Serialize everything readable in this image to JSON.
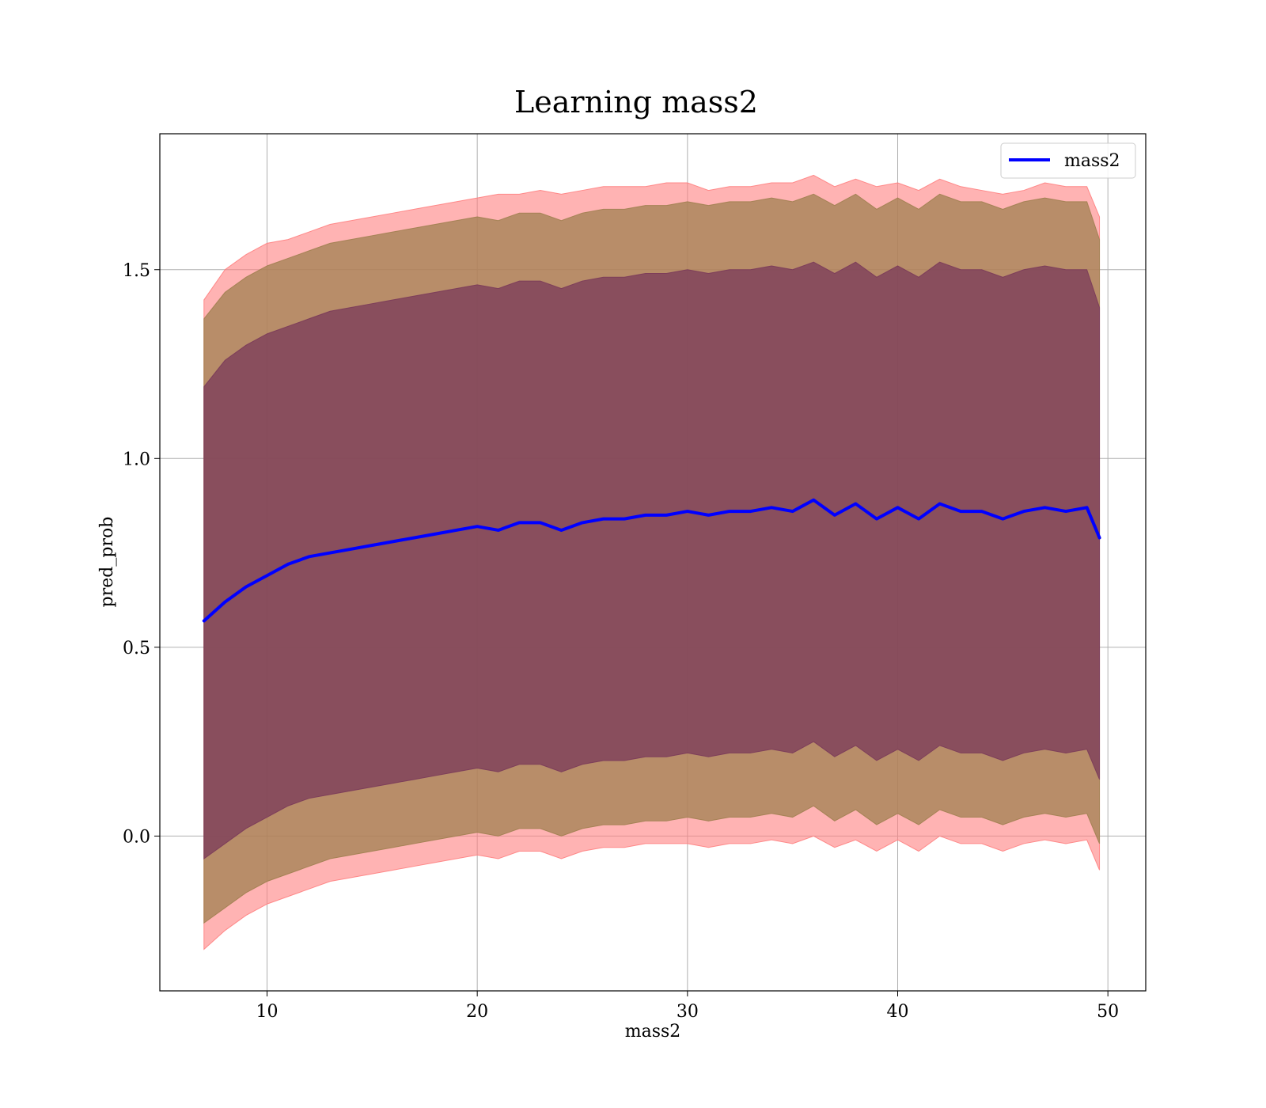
{
  "chart_data": {
    "type": "area",
    "title": "Learning mass2",
    "xlabel": "mass2",
    "ylabel": "pred_prob",
    "xlim": [
      4.9,
      51.8
    ],
    "ylim": [
      -0.41,
      1.86
    ],
    "xticks": [
      10,
      20,
      30,
      40,
      50
    ],
    "yticks": [
      0.0,
      0.5,
      1.0,
      1.5
    ],
    "xtick_labels": [
      "10",
      "20",
      "30",
      "40",
      "50"
    ],
    "ytick_labels": [
      "0.0",
      "0.5",
      "1.0",
      "1.5"
    ],
    "grid": true,
    "legend": {
      "position": "upper-right",
      "entries": [
        "mass2"
      ]
    },
    "colors": {
      "line": "#0000ff",
      "band_outer": "#ff8080",
      "band_middle": "#a08050",
      "band_inner": "#7a3a5a"
    },
    "x": [
      7.0,
      8.0,
      9.0,
      10.0,
      11.0,
      12.0,
      13.0,
      14.0,
      15.0,
      16.0,
      17.0,
      18.0,
      19.0,
      20.0,
      21.0,
      22.0,
      23.0,
      24.0,
      25.0,
      26.0,
      27.0,
      28.0,
      29.0,
      30.0,
      31.0,
      32.0,
      33.0,
      34.0,
      35.0,
      36.0,
      37.0,
      38.0,
      39.0,
      40.0,
      41.0,
      42.0,
      43.0,
      44.0,
      45.0,
      46.0,
      47.0,
      48.0,
      49.0,
      49.6
    ],
    "series": [
      {
        "name": "mass2",
        "values": [
          0.57,
          0.62,
          0.66,
          0.69,
          0.72,
          0.74,
          0.75,
          0.76,
          0.77,
          0.78,
          0.79,
          0.8,
          0.81,
          0.82,
          0.81,
          0.83,
          0.83,
          0.81,
          0.83,
          0.84,
          0.84,
          0.85,
          0.85,
          0.86,
          0.85,
          0.86,
          0.86,
          0.87,
          0.86,
          0.89,
          0.85,
          0.88,
          0.84,
          0.87,
          0.84,
          0.88,
          0.86,
          0.86,
          0.84,
          0.86,
          0.87,
          0.86,
          0.87,
          0.79
        ]
      }
    ],
    "bands": [
      {
        "level": "outer",
        "upper": [
          1.42,
          1.5,
          1.54,
          1.57,
          1.58,
          1.6,
          1.62,
          1.63,
          1.64,
          1.65,
          1.66,
          1.67,
          1.68,
          1.69,
          1.7,
          1.7,
          1.71,
          1.7,
          1.71,
          1.72,
          1.72,
          1.72,
          1.73,
          1.73,
          1.71,
          1.72,
          1.72,
          1.73,
          1.73,
          1.75,
          1.72,
          1.74,
          1.72,
          1.73,
          1.71,
          1.74,
          1.72,
          1.71,
          1.7,
          1.71,
          1.73,
          1.72,
          1.72,
          1.64
        ],
        "lower": [
          -0.3,
          -0.25,
          -0.21,
          -0.18,
          -0.16,
          -0.14,
          -0.12,
          -0.11,
          -0.1,
          -0.09,
          -0.08,
          -0.07,
          -0.06,
          -0.05,
          -0.06,
          -0.04,
          -0.04,
          -0.06,
          -0.04,
          -0.03,
          -0.03,
          -0.02,
          -0.02,
          -0.02,
          -0.03,
          -0.02,
          -0.02,
          -0.01,
          -0.02,
          0.0,
          -0.03,
          -0.01,
          -0.04,
          -0.01,
          -0.04,
          0.0,
          -0.02,
          -0.02,
          -0.04,
          -0.02,
          -0.01,
          -0.02,
          -0.01,
          -0.09
        ]
      },
      {
        "level": "middle",
        "upper": [
          1.37,
          1.44,
          1.48,
          1.51,
          1.53,
          1.55,
          1.57,
          1.58,
          1.59,
          1.6,
          1.61,
          1.62,
          1.63,
          1.64,
          1.63,
          1.65,
          1.65,
          1.63,
          1.65,
          1.66,
          1.66,
          1.67,
          1.67,
          1.68,
          1.67,
          1.68,
          1.68,
          1.69,
          1.68,
          1.7,
          1.67,
          1.7,
          1.66,
          1.69,
          1.66,
          1.7,
          1.68,
          1.68,
          1.66,
          1.68,
          1.69,
          1.68,
          1.68,
          1.58
        ],
        "lower": [
          -0.23,
          -0.19,
          -0.15,
          -0.12,
          -0.1,
          -0.08,
          -0.06,
          -0.05,
          -0.04,
          -0.03,
          -0.02,
          -0.01,
          0.0,
          0.01,
          0.0,
          0.02,
          0.02,
          0.0,
          0.02,
          0.03,
          0.03,
          0.04,
          0.04,
          0.05,
          0.04,
          0.05,
          0.05,
          0.06,
          0.05,
          0.08,
          0.04,
          0.07,
          0.03,
          0.06,
          0.03,
          0.07,
          0.05,
          0.05,
          0.03,
          0.05,
          0.06,
          0.05,
          0.06,
          -0.02
        ]
      },
      {
        "level": "inner",
        "upper": [
          1.19,
          1.26,
          1.3,
          1.33,
          1.35,
          1.37,
          1.39,
          1.4,
          1.41,
          1.42,
          1.43,
          1.44,
          1.45,
          1.46,
          1.45,
          1.47,
          1.47,
          1.45,
          1.47,
          1.48,
          1.48,
          1.49,
          1.49,
          1.5,
          1.49,
          1.5,
          1.5,
          1.51,
          1.5,
          1.52,
          1.49,
          1.52,
          1.48,
          1.51,
          1.48,
          1.52,
          1.5,
          1.5,
          1.48,
          1.5,
          1.51,
          1.5,
          1.5,
          1.4
        ],
        "lower": [
          -0.06,
          -0.02,
          0.02,
          0.05,
          0.08,
          0.1,
          0.11,
          0.12,
          0.13,
          0.14,
          0.15,
          0.16,
          0.17,
          0.18,
          0.17,
          0.19,
          0.19,
          0.17,
          0.19,
          0.2,
          0.2,
          0.21,
          0.21,
          0.22,
          0.21,
          0.22,
          0.22,
          0.23,
          0.22,
          0.25,
          0.21,
          0.24,
          0.2,
          0.23,
          0.2,
          0.24,
          0.22,
          0.22,
          0.2,
          0.22,
          0.23,
          0.22,
          0.23,
          0.15
        ]
      }
    ]
  }
}
